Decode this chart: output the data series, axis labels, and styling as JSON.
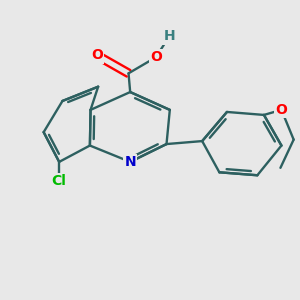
{
  "background_color": "#e8e8e8",
  "bond_color": "#2d6060",
  "atom_colors": {
    "O": "#ff0000",
    "N": "#0000cc",
    "Cl": "#00bb00",
    "H": "#3a8080"
  },
  "figsize": [
    3.0,
    3.0
  ],
  "dpi": 100,
  "xlim": [
    -1.6,
    2.4
  ],
  "ylim": [
    -1.9,
    1.7
  ]
}
